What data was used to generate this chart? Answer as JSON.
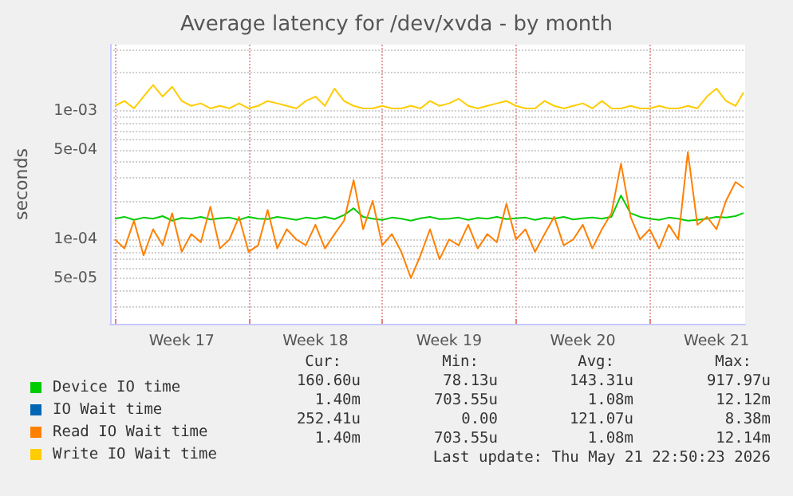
{
  "chart_data": {
    "type": "line",
    "title": "Average latency for /dev/xvda - by month",
    "ylabel": "seconds",
    "x": [
      "2026-04-19T00:00",
      "2026-04-19T12:00",
      "2026-04-20T00:00",
      "2026-04-20T12:00",
      "2026-04-21T00:00",
      "2026-04-21T12:00",
      "2026-04-22T00:00",
      "2026-04-22T12:00",
      "2026-04-23T00:00",
      "2026-04-23T12:00",
      "2026-04-24T00:00",
      "2026-04-24T12:00",
      "2026-04-25T00:00",
      "2026-04-25T12:00",
      "2026-04-26T00:00",
      "2026-04-26T12:00",
      "2026-04-27T00:00",
      "2026-04-27T12:00",
      "2026-04-28T00:00",
      "2026-04-28T12:00",
      "2026-04-29T00:00",
      "2026-04-29T12:00",
      "2026-04-30T00:00",
      "2026-04-30T12:00",
      "2026-05-01T00:00",
      "2026-05-01T12:00",
      "2026-05-02T00:00",
      "2026-05-02T12:00",
      "2026-05-03T00:00",
      "2026-05-03T12:00",
      "2026-05-04T00:00",
      "2026-05-04T12:00",
      "2026-05-05T00:00",
      "2026-05-05T12:00",
      "2026-05-06T00:00",
      "2026-05-06T12:00",
      "2026-05-07T00:00",
      "2026-05-07T12:00",
      "2026-05-08T00:00",
      "2026-05-08T12:00",
      "2026-05-09T00:00",
      "2026-05-09T12:00",
      "2026-05-10T00:00",
      "2026-05-10T12:00",
      "2026-05-11T00:00",
      "2026-05-11T12:00",
      "2026-05-12T00:00",
      "2026-05-12T12:00",
      "2026-05-13T00:00",
      "2026-05-13T12:00",
      "2026-05-14T00:00",
      "2026-05-14T12:00",
      "2026-05-15T00:00",
      "2026-05-15T12:00",
      "2026-05-16T00:00",
      "2026-05-16T12:00",
      "2026-05-17T00:00",
      "2026-05-17T12:00",
      "2026-05-18T00:00",
      "2026-05-18T12:00",
      "2026-05-19T00:00",
      "2026-05-19T12:00",
      "2026-05-20T00:00",
      "2026-05-20T12:00",
      "2026-05-21T00:00",
      "2026-05-21T12:00",
      "2026-05-21T22:00"
    ],
    "series": [
      {
        "name": "Device IO time",
        "color": "#00cc00",
        "values": [
          0.000145,
          0.00015,
          0.000142,
          0.000148,
          0.000145,
          0.000152,
          0.00014,
          0.000147,
          0.000145,
          0.00015,
          0.000143,
          0.000146,
          0.000148,
          0.000142,
          0.00015,
          0.000145,
          0.000144,
          0.00015,
          0.000146,
          0.000142,
          0.000148,
          0.000145,
          0.00015,
          0.000144,
          0.000155,
          0.000175,
          0.00015,
          0.000145,
          0.000142,
          0.000148,
          0.000145,
          0.00014,
          0.000146,
          0.00015,
          0.000144,
          0.000145,
          0.000148,
          0.000142,
          0.000147,
          0.000145,
          0.00015,
          0.000144,
          0.000146,
          0.000148,
          0.000142,
          0.000147,
          0.000145,
          0.00015,
          0.000143,
          0.000146,
          0.000148,
          0.000145,
          0.00015,
          0.00022,
          0.00016,
          0.00015,
          0.000145,
          0.000142,
          0.000148,
          0.000145,
          0.00014,
          0.000142,
          0.000145,
          0.00015,
          0.000148,
          0.000152,
          0.0001606
        ]
      },
      {
        "name": "IO Wait time",
        "color": "#0066b3",
        "values": [
          null,
          null,
          null,
          null,
          null,
          null,
          null,
          null,
          null,
          null,
          null,
          null,
          null,
          null,
          null,
          null,
          null,
          null,
          null,
          null,
          null,
          null,
          null,
          null,
          null,
          null,
          null,
          null,
          null,
          null,
          null,
          null,
          null,
          null,
          null,
          null,
          null,
          null,
          null,
          null,
          null,
          null,
          null,
          null,
          null,
          null,
          null,
          null,
          null,
          null,
          null,
          null,
          null,
          null,
          null,
          null,
          null,
          null,
          null,
          null,
          null,
          null,
          null,
          null,
          null,
          null,
          null
        ]
      },
      {
        "name": "Read IO Wait time",
        "color": "#ff8000",
        "values": [
          0.0001,
          8.5e-05,
          0.00014,
          7.5e-05,
          0.00012,
          9e-05,
          0.00016,
          8e-05,
          0.00011,
          9.5e-05,
          0.00018,
          8.5e-05,
          0.0001,
          0.00015,
          8e-05,
          9e-05,
          0.00017,
          8.5e-05,
          0.00012,
          0.0001,
          9e-05,
          0.00013,
          8.5e-05,
          0.00011,
          0.00014,
          0.00029,
          0.00012,
          0.0002,
          9e-05,
          0.00011,
          8e-05,
          5e-05,
          7.5e-05,
          0.00012,
          7e-05,
          0.0001,
          9e-05,
          0.00013,
          8.5e-05,
          0.00011,
          9.5e-05,
          0.00019,
          0.0001,
          0.00012,
          8e-05,
          0.00011,
          0.00015,
          9e-05,
          0.0001,
          0.00013,
          8.5e-05,
          0.00012,
          0.00016,
          0.00039,
          0.00015,
          0.0001,
          0.00012,
          8.5e-05,
          0.00013,
          0.0001,
          0.00048,
          0.00013,
          0.00015,
          0.00012,
          0.0002,
          0.00028,
          0.0002524
        ]
      },
      {
        "name": "Write IO Wait time",
        "color": "#ffcc00",
        "values": [
          0.0011,
          0.0012,
          0.00105,
          0.0013,
          0.0016,
          0.0013,
          0.00155,
          0.0012,
          0.0011,
          0.00115,
          0.00105,
          0.0011,
          0.00105,
          0.00115,
          0.00105,
          0.0011,
          0.0012,
          0.00115,
          0.0011,
          0.00105,
          0.0012,
          0.0013,
          0.0011,
          0.0015,
          0.0012,
          0.0011,
          0.00105,
          0.00105,
          0.0011,
          0.00105,
          0.00105,
          0.0011,
          0.00105,
          0.0012,
          0.0011,
          0.00115,
          0.00125,
          0.0011,
          0.00105,
          0.0011,
          0.00115,
          0.0012,
          0.0011,
          0.00105,
          0.00105,
          0.0012,
          0.0011,
          0.00105,
          0.0011,
          0.00115,
          0.00105,
          0.0012,
          0.00105,
          0.00105,
          0.0011,
          0.00105,
          0.00105,
          0.0011,
          0.00105,
          0.00105,
          0.0011,
          0.00105,
          0.0013,
          0.0015,
          0.0012,
          0.0011,
          0.0014
        ]
      }
    ],
    "xlim": [
      "2026-04-18T18:00",
      "2026-05-22T00:00"
    ],
    "xticks": [
      {
        "value": "2026-04-19T00:00",
        "label": null
      },
      {
        "value": "2026-04-22T12:00",
        "label": "Week 17"
      },
      {
        "value": "2026-04-26T00:00",
        "label": null
      },
      {
        "value": "2026-04-29T12:00",
        "label": "Week 18"
      },
      {
        "value": "2026-05-03T00:00",
        "label": null
      },
      {
        "value": "2026-05-06T12:00",
        "label": "Week 19"
      },
      {
        "value": "2026-05-10T00:00",
        "label": null
      },
      {
        "value": "2026-05-13T12:00",
        "label": "Week 20"
      },
      {
        "value": "2026-05-17T00:00",
        "label": null
      },
      {
        "value": "2026-05-20T12:00",
        "label": "Week 21"
      }
    ],
    "ylim": [
      2.2e-05,
      0.0033
    ],
    "yticks": [
      {
        "value": 3e-05,
        "label": null
      },
      {
        "value": 4e-05,
        "label": null
      },
      {
        "value": 5e-05,
        "label": "5e-05"
      },
      {
        "value": 6e-05,
        "label": null
      },
      {
        "value": 7e-05,
        "label": null
      },
      {
        "value": 8e-05,
        "label": null
      },
      {
        "value": 9e-05,
        "label": null
      },
      {
        "value": 0.0001,
        "label": "1e-04"
      },
      {
        "value": 0.0002,
        "label": null
      },
      {
        "value": 0.0003,
        "label": null
      },
      {
        "value": 0.0004,
        "label": null
      },
      {
        "value": 0.0005,
        "label": "5e-04"
      },
      {
        "value": 0.0006,
        "label": null
      },
      {
        "value": 0.0007,
        "label": null
      },
      {
        "value": 0.0008,
        "label": null
      },
      {
        "value": 0.0009,
        "label": null
      },
      {
        "value": 0.001,
        "label": "1e-03"
      },
      {
        "value": 0.002,
        "label": null
      },
      {
        "value": 0.003,
        "label": null
      }
    ],
    "log": "y",
    "grid": true,
    "legend": "bottom left",
    "marker": "none",
    "line_style": "solid",
    "annotations": [
      "Cur:",
      "Min:",
      "Avg:",
      "Max:",
      "160.60u",
      "78.13u",
      "143.31u",
      "917.97u",
      "1.40m",
      "703.55u",
      "1.08m",
      "12.12m",
      "252.41u",
      "0.00",
      "121.07u",
      "8.38m",
      "1.40m",
      "703.55u",
      "1.08m",
      "12.14m",
      "Last update: Thu May 21 22:50:23 2026"
    ]
  }
}
